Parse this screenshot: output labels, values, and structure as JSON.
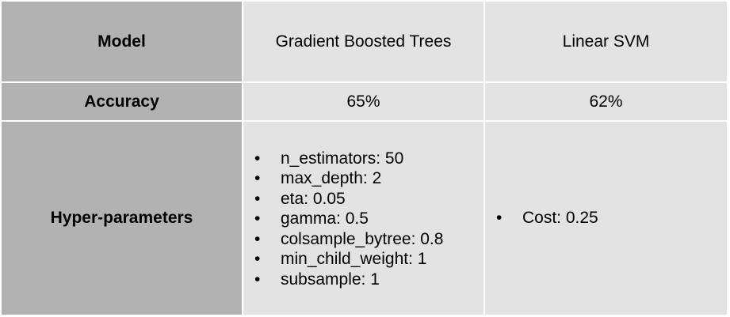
{
  "table": {
    "rows": [
      {
        "header": "Model",
        "cells": [
          "Gradient Boosted Trees",
          "Linear SVM"
        ]
      },
      {
        "header": "Accuracy",
        "cells": [
          "65%",
          "62%"
        ]
      },
      {
        "header": "Hyper-parameters",
        "lists": [
          [
            "n_estimators: 50",
            "max_depth: 2",
            "eta: 0.05",
            "gamma: 0.5",
            "colsample_bytree: 0.8",
            "min_child_weight: 1",
            "subsample: 1"
          ],
          [
            "Cost: 0.25"
          ]
        ]
      }
    ]
  },
  "colors": {
    "header_bg": "#b2b2b2",
    "body_bg": "#e3e3e3",
    "border": "#ffffff"
  }
}
